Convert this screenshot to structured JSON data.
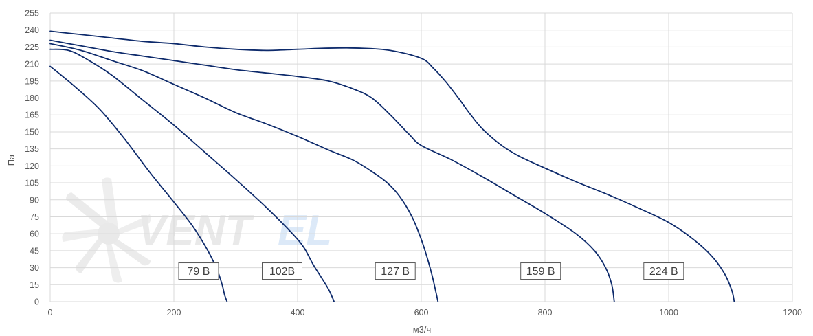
{
  "chart_data": {
    "type": "line",
    "title": "",
    "xlabel": "м3/ч",
    "ylabel": "Па",
    "xlim": [
      0,
      1200
    ],
    "ylim": [
      0,
      255
    ],
    "x_ticks": [
      0,
      200,
      400,
      600,
      800,
      1000,
      1200
    ],
    "y_ticks": [
      0,
      15,
      30,
      45,
      60,
      75,
      90,
      105,
      120,
      135,
      150,
      165,
      180,
      195,
      210,
      225,
      240,
      255
    ],
    "grid": true,
    "line_color": "#0d2a6b",
    "watermark": "VENTEL logo",
    "series": [
      {
        "name": "79 В",
        "label_at": [
          240,
          27
        ],
        "points": [
          [
            0,
            208
          ],
          [
            40,
            190
          ],
          [
            80,
            170
          ],
          [
            120,
            144
          ],
          [
            160,
            115
          ],
          [
            200,
            88
          ],
          [
            230,
            67
          ],
          [
            255,
            45
          ],
          [
            270,
            28
          ],
          [
            278,
            15
          ],
          [
            282,
            6
          ],
          [
            286,
            0
          ]
        ]
      },
      {
        "name": "102В",
        "label_at": [
          375,
          27
        ],
        "points": [
          [
            0,
            223
          ],
          [
            30,
            222
          ],
          [
            60,
            214
          ],
          [
            100,
            200
          ],
          [
            150,
            178
          ],
          [
            200,
            156
          ],
          [
            250,
            132
          ],
          [
            300,
            108
          ],
          [
            350,
            83
          ],
          [
            390,
            61
          ],
          [
            410,
            48
          ],
          [
            425,
            33
          ],
          [
            440,
            20
          ],
          [
            450,
            11
          ],
          [
            456,
            4
          ],
          [
            459,
            0
          ]
        ]
      },
      {
        "name": "127 В",
        "label_at": [
          558,
          27
        ],
        "points": [
          [
            0,
            228
          ],
          [
            50,
            222
          ],
          [
            100,
            213
          ],
          [
            150,
            204
          ],
          [
            200,
            192
          ],
          [
            250,
            180
          ],
          [
            300,
            167
          ],
          [
            350,
            157
          ],
          [
            400,
            146
          ],
          [
            450,
            134
          ],
          [
            490,
            125
          ],
          [
            520,
            115
          ],
          [
            545,
            105
          ],
          [
            565,
            93
          ],
          [
            585,
            75
          ],
          [
            600,
            55
          ],
          [
            610,
            38
          ],
          [
            618,
            22
          ],
          [
            623,
            10
          ],
          [
            627,
            0
          ]
        ]
      },
      {
        "name": "159 В",
        "label_at": [
          793,
          27
        ],
        "points": [
          [
            0,
            231
          ],
          [
            50,
            226
          ],
          [
            100,
            221
          ],
          [
            150,
            217
          ],
          [
            200,
            213
          ],
          [
            250,
            209
          ],
          [
            300,
            205
          ],
          [
            350,
            202
          ],
          [
            400,
            199
          ],
          [
            450,
            195
          ],
          [
            490,
            188
          ],
          [
            520,
            180
          ],
          [
            550,
            165
          ],
          [
            580,
            148
          ],
          [
            600,
            138
          ],
          [
            650,
            125
          ],
          [
            700,
            110
          ],
          [
            750,
            94
          ],
          [
            800,
            78
          ],
          [
            850,
            60
          ],
          [
            880,
            45
          ],
          [
            898,
            30
          ],
          [
            908,
            15
          ],
          [
            912,
            0
          ]
        ]
      },
      {
        "name": "224 В",
        "label_at": [
          992,
          27
        ],
        "points": [
          [
            0,
            239
          ],
          [
            50,
            236
          ],
          [
            100,
            233
          ],
          [
            150,
            230
          ],
          [
            200,
            228
          ],
          [
            250,
            225
          ],
          [
            300,
            223
          ],
          [
            350,
            222
          ],
          [
            400,
            223
          ],
          [
            450,
            224
          ],
          [
            500,
            224
          ],
          [
            550,
            222
          ],
          [
            600,
            215
          ],
          [
            620,
            206
          ],
          [
            640,
            194
          ],
          [
            660,
            180
          ],
          [
            680,
            165
          ],
          [
            700,
            152
          ],
          [
            730,
            138
          ],
          [
            760,
            128
          ],
          [
            800,
            118
          ],
          [
            850,
            106
          ],
          [
            900,
            95
          ],
          [
            950,
            83
          ],
          [
            1000,
            70
          ],
          [
            1040,
            55
          ],
          [
            1070,
            40
          ],
          [
            1090,
            25
          ],
          [
            1102,
            10
          ],
          [
            1106,
            0
          ]
        ]
      }
    ]
  }
}
